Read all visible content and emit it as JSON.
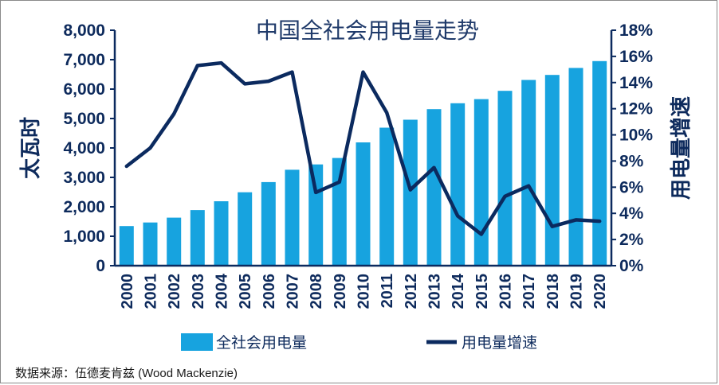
{
  "chart_data": {
    "type": "bar",
    "title": "中国全社会用电量走势",
    "categories": [
      "2000",
      "2001",
      "2002",
      "2003",
      "2004",
      "2005",
      "2006",
      "2007",
      "2008",
      "2009",
      "2010",
      "2011",
      "2012",
      "2013",
      "2014",
      "2015",
      "2016",
      "2017",
      "2018",
      "2019",
      "2020"
    ],
    "series": [
      {
        "name": "全社会用电量",
        "kind": "bar",
        "axis": "left",
        "color": "#17a3df",
        "values": [
          1347,
          1468,
          1633,
          1890,
          2190,
          2494,
          2840,
          3260,
          3440,
          3660,
          4190,
          4690,
          4960,
          5320,
          5520,
          5660,
          5940,
          6310,
          6480,
          6720,
          6950
        ]
      },
      {
        "name": "用电量增速",
        "kind": "line",
        "axis": "right",
        "color": "#0b2a5f",
        "values": [
          7.6,
          9.0,
          11.6,
          15.3,
          15.5,
          13.9,
          14.1,
          14.8,
          5.6,
          6.4,
          14.8,
          11.7,
          5.8,
          7.5,
          3.8,
          2.4,
          5.3,
          6.1,
          3.0,
          3.5,
          3.4
        ]
      }
    ],
    "ylabel": "太瓦时",
    "y2label": "用电量增速",
    "ylim": [
      0,
      8000
    ],
    "y2lim": [
      0,
      18
    ],
    "yticks": [
      "0",
      "1,000",
      "2,000",
      "3,000",
      "4,000",
      "5,000",
      "6,000",
      "7,000",
      "8,000"
    ],
    "y2ticks": [
      "0%",
      "2%",
      "4%",
      "6%",
      "8%",
      "10%",
      "12%",
      "14%",
      "16%",
      "18%"
    ],
    "legend_position": "bottom",
    "grid": false
  },
  "source": "数据来源：伍德麦肯兹 (Wood Mackenzie)"
}
